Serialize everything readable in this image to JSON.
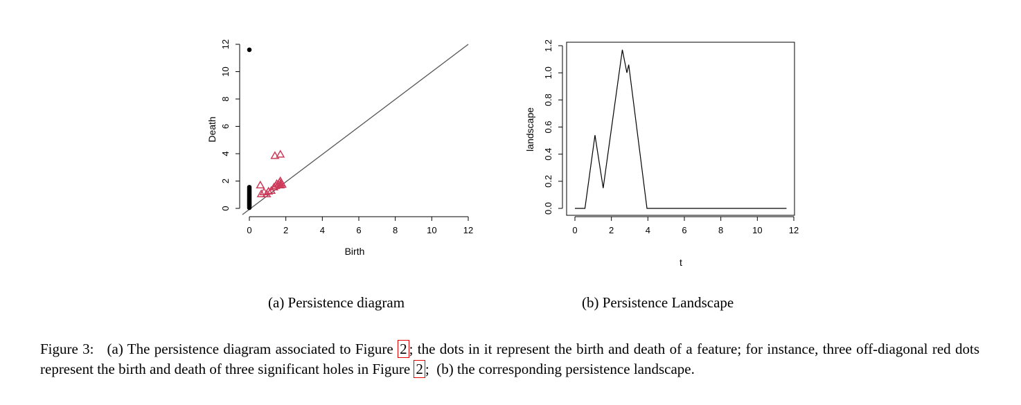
{
  "chart_data": [
    {
      "type": "scatter",
      "xlabel": "Birth",
      "ylabel": "Death",
      "xlim": [
        0,
        12
      ],
      "ylim": [
        0,
        12
      ],
      "xticks": [
        "0",
        "2",
        "4",
        "6",
        "8",
        "10",
        "12"
      ],
      "yticks": [
        "0",
        "2",
        "4",
        "6",
        "8",
        "10",
        "12"
      ],
      "diagonal": true,
      "series": [
        {
          "marker": "dot",
          "color": "#000000",
          "points": [
            [
              0,
              11.6
            ],
            [
              0,
              0.05
            ],
            [
              0,
              0.15
            ],
            [
              0,
              0.25
            ],
            [
              0,
              0.35
            ],
            [
              0,
              0.45
            ],
            [
              0,
              0.55
            ],
            [
              0,
              0.65
            ],
            [
              0,
              0.75
            ],
            [
              0,
              0.85
            ],
            [
              0,
              0.95
            ],
            [
              0,
              1.05
            ],
            [
              0,
              1.15
            ],
            [
              0,
              1.25
            ],
            [
              0,
              1.35
            ],
            [
              0,
              1.45
            ],
            [
              0,
              1.55
            ]
          ]
        },
        {
          "marker": "triangle",
          "color": "#cd3b5a",
          "points": [
            [
              1.4,
              3.85
            ],
            [
              1.7,
              3.95
            ],
            [
              0.6,
              1.7
            ],
            [
              0.65,
              1.05
            ],
            [
              0.8,
              1.2
            ],
            [
              0.95,
              1.05
            ],
            [
              1.05,
              1.25
            ],
            [
              1.2,
              1.3
            ],
            [
              1.35,
              1.55
            ],
            [
              1.45,
              1.65
            ],
            [
              1.5,
              1.8
            ],
            [
              1.6,
              1.75
            ],
            [
              1.65,
              1.9
            ],
            [
              1.7,
              2.0
            ],
            [
              1.75,
              1.85
            ],
            [
              1.8,
              1.75
            ],
            [
              1.7,
              1.7
            ]
          ]
        }
      ]
    },
    {
      "type": "line",
      "xlabel": "t",
      "ylabel": "landscape",
      "xlim": [
        0,
        12
      ],
      "ylim": [
        0,
        1.2
      ],
      "xticks": [
        "0",
        "2",
        "4",
        "6",
        "8",
        "10",
        "12"
      ],
      "yticks": [
        "0.0",
        "0.2",
        "0.4",
        "0.6",
        "0.8",
        "1.0",
        "1.2"
      ],
      "color": "#000000",
      "x": [
        0,
        0.55,
        1.1,
        1.55,
        2.6,
        2.85,
        2.95,
        3.95,
        11.6
      ],
      "y": [
        0,
        0,
        0.54,
        0.15,
        1.17,
        1.0,
        1.06,
        0,
        0
      ]
    }
  ],
  "subcaptions": {
    "a": "(a) Persistence diagram",
    "b": "(b) Persistence Landscape"
  },
  "caption": {
    "part1": "Figure 3:   (a) The persistence diagram associated to Figure ",
    "ref1": "2",
    "part2": "; the dots in it represent the birth and death of a feature; for instance, three off-diagonal red dots represent the birth and death of three significant holes in Figure ",
    "ref2": "2",
    "part3": ";  (b) the corresponding persistence landscape."
  }
}
